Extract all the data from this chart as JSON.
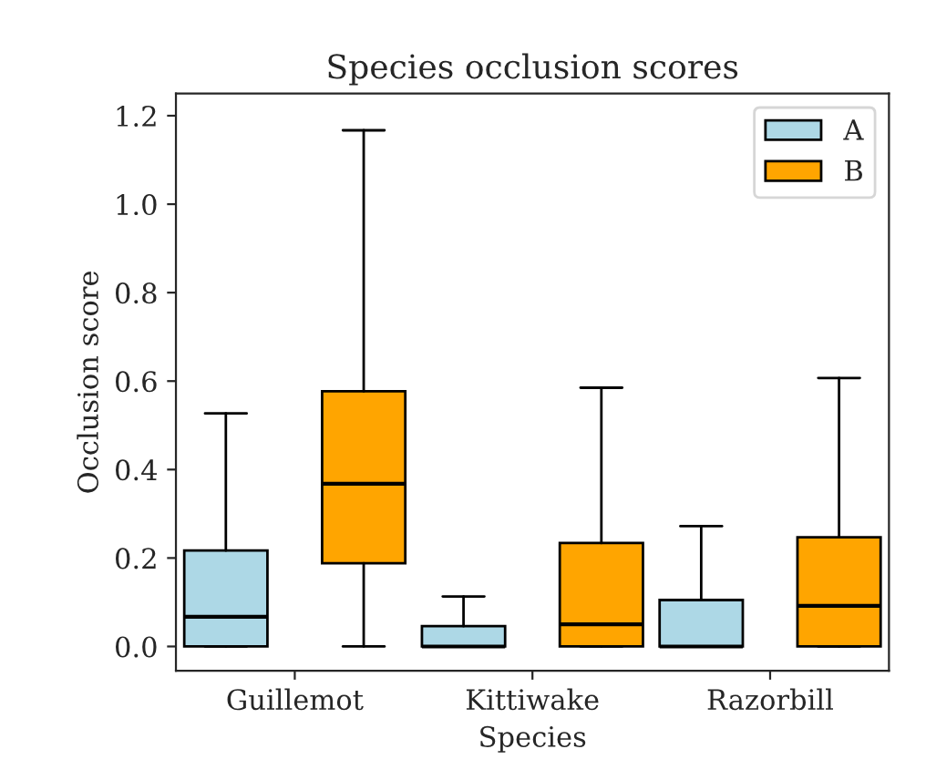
{
  "chart_data": {
    "type": "box",
    "title": "Species occlusion scores",
    "xlabel": "Species",
    "ylabel": "Occlusion score",
    "categories": [
      "Guillemot",
      "Kittiwake",
      "Razorbill"
    ],
    "series": [
      {
        "name": "A",
        "color": "#add8e6",
        "boxes": [
          {
            "low": 0,
            "q1": 0,
            "median": 0.067,
            "q3": 0.217,
            "high": 0.527
          },
          {
            "low": 0,
            "q1": 0,
            "median": 0,
            "q3": 0.046,
            "high": 0.113
          },
          {
            "low": 0,
            "q1": 0,
            "median": 0,
            "q3": 0.105,
            "high": 0.272
          }
        ]
      },
      {
        "name": "B",
        "color": "#ffa500",
        "boxes": [
          {
            "low": 0,
            "q1": 0.188,
            "median": 0.368,
            "q3": 0.577,
            "high": 1.167
          },
          {
            "low": 0,
            "q1": 0,
            "median": 0.05,
            "q3": 0.234,
            "high": 0.585
          },
          {
            "low": 0,
            "q1": 0,
            "median": 0.092,
            "q3": 0.247,
            "high": 0.607
          }
        ]
      }
    ],
    "ylim": [
      -0.055,
      1.25
    ],
    "yticks": [
      {
        "value": 0,
        "label": "0.0"
      },
      {
        "value": 0.2,
        "label": "0.2"
      },
      {
        "value": 0.4,
        "label": "0.4"
      },
      {
        "value": 0.6,
        "label": "0.6"
      },
      {
        "value": 0.8,
        "label": "0.8"
      },
      {
        "value": 1.0,
        "label": "1.0"
      },
      {
        "value": 1.2,
        "label": "1.2"
      }
    ],
    "grid": false,
    "legend": "top right"
  }
}
